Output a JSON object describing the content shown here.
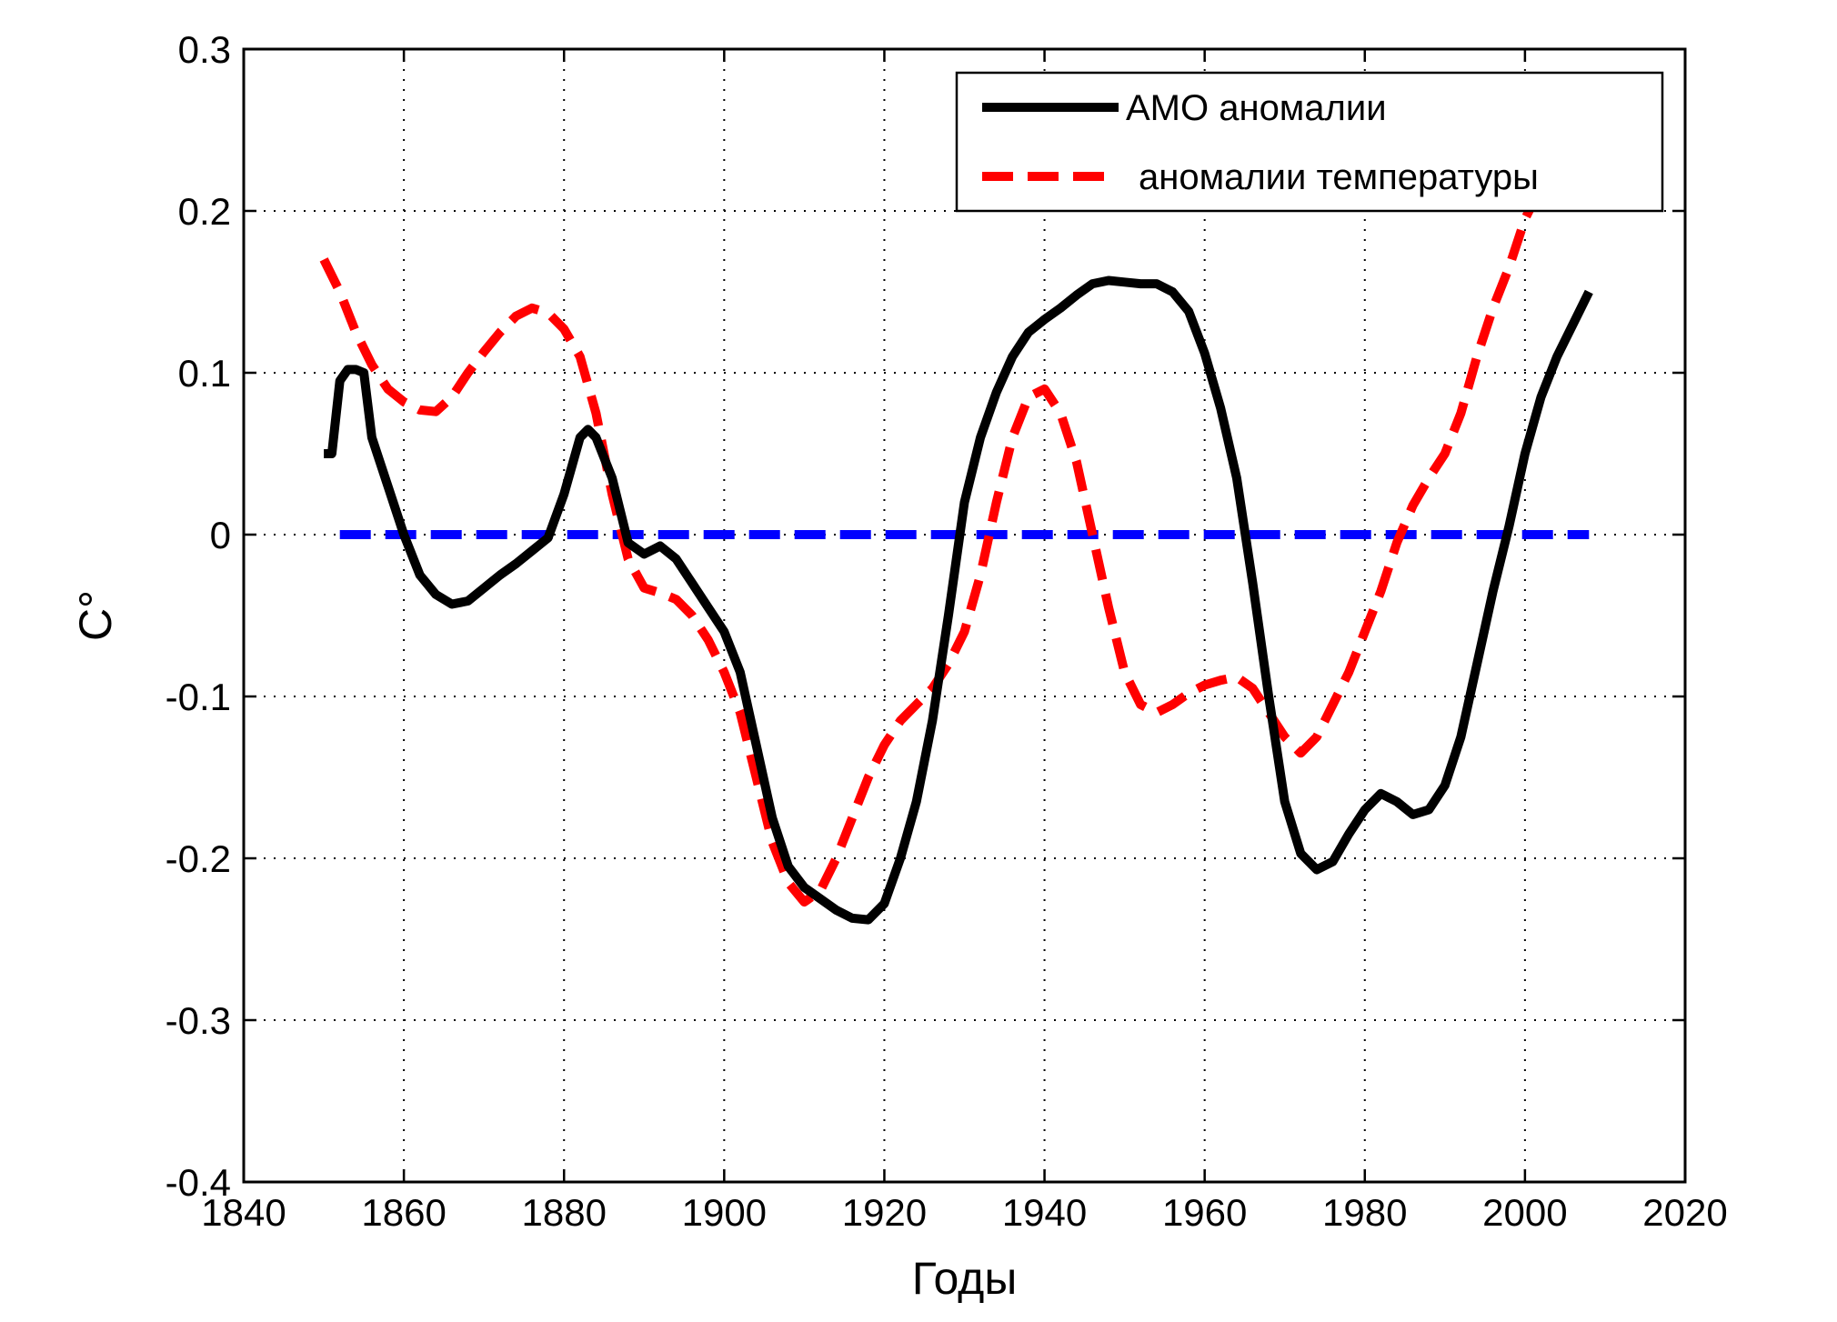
{
  "chart_data": {
    "type": "line",
    "xlabel": "Годы",
    "ylabel": "C°",
    "xlim": [
      1840,
      2020
    ],
    "ylim": [
      -0.4,
      0.3
    ],
    "xticks": [
      1840,
      1860,
      1880,
      1900,
      1920,
      1940,
      1960,
      1980,
      2000,
      2020
    ],
    "xtick_labels": [
      "1840",
      "1860",
      "1880",
      "1900",
      "1920",
      "1940",
      "1960",
      "1980",
      "2000",
      "2020"
    ],
    "yticks": [
      -0.4,
      -0.3,
      -0.2,
      -0.1,
      0,
      0.1,
      0.2,
      0.3
    ],
    "ytick_labels": [
      "-0.4",
      "-0.3",
      "-0.2",
      "-0.1",
      "0",
      "0.1",
      "0.2",
      "0.3"
    ],
    "grid": true,
    "legend_position": "top-right",
    "series": [
      {
        "name": "AMO аномалии",
        "color": "#000000",
        "style": "solid",
        "x": [
          1850,
          1851,
          1852,
          1853,
          1854,
          1855,
          1856,
          1858,
          1860,
          1862,
          1864,
          1866,
          1868,
          1870,
          1872,
          1874,
          1876,
          1878,
          1880,
          1882,
          1883,
          1884,
          1886,
          1888,
          1890,
          1892,
          1894,
          1896,
          1898,
          1900,
          1902,
          1904,
          1906,
          1908,
          1910,
          1912,
          1914,
          1916,
          1918,
          1920,
          1922,
          1924,
          1926,
          1928,
          1930,
          1932,
          1934,
          1936,
          1938,
          1940,
          1942,
          1944,
          1946,
          1948,
          1950,
          1952,
          1954,
          1956,
          1958,
          1960,
          1962,
          1964,
          1966,
          1968,
          1970,
          1972,
          1974,
          1976,
          1978,
          1980,
          1982,
          1984,
          1986,
          1988,
          1990,
          1992,
          1994,
          1996,
          1998,
          2000,
          2002,
          2004,
          2006,
          2008
        ],
        "y": [
          0.05,
          0.05,
          0.095,
          0.102,
          0.102,
          0.1,
          0.06,
          0.03,
          0.0,
          -0.025,
          -0.037,
          -0.043,
          -0.041,
          -0.033,
          -0.025,
          -0.018,
          -0.01,
          -0.002,
          0.025,
          0.06,
          0.065,
          0.06,
          0.035,
          -0.005,
          -0.012,
          -0.007,
          -0.015,
          -0.03,
          -0.045,
          -0.06,
          -0.085,
          -0.13,
          -0.175,
          -0.205,
          -0.218,
          -0.225,
          -0.232,
          -0.237,
          -0.238,
          -0.228,
          -0.2,
          -0.165,
          -0.115,
          -0.05,
          0.02,
          0.06,
          0.088,
          0.11,
          0.125,
          0.133,
          0.14,
          0.148,
          0.155,
          0.157,
          0.156,
          0.155,
          0.155,
          0.15,
          0.138,
          0.112,
          0.078,
          0.035,
          -0.03,
          -0.1,
          -0.165,
          -0.197,
          -0.207,
          -0.202,
          -0.185,
          -0.17,
          -0.16,
          -0.165,
          -0.173,
          -0.17,
          -0.155,
          -0.125,
          -0.08,
          -0.035,
          0.005,
          0.05,
          0.085,
          0.11,
          0.13,
          0.15
        ]
      },
      {
        "name": "аномалии температуры",
        "color": "#ff0000",
        "style": "dashed",
        "x": [
          1850,
          1852,
          1854,
          1856,
          1858,
          1860,
          1862,
          1864,
          1866,
          1868,
          1870,
          1872,
          1874,
          1876,
          1878,
          1880,
          1882,
          1884,
          1886,
          1888,
          1890,
          1892,
          1894,
          1896,
          1898,
          1900,
          1902,
          1904,
          1906,
          1908,
          1910,
          1912,
          1914,
          1916,
          1918,
          1920,
          1922,
          1924,
          1926,
          1928,
          1930,
          1932,
          1934,
          1936,
          1938,
          1940,
          1942,
          1944,
          1946,
          1948,
          1950,
          1952,
          1954,
          1956,
          1958,
          1960,
          1962,
          1964,
          1966,
          1968,
          1970,
          1972,
          1974,
          1976,
          1978,
          1980,
          1982,
          1984,
          1986,
          1988,
          1990,
          1992,
          1994,
          1996,
          1998,
          2000,
          2001
        ],
        "y": [
          0.17,
          0.15,
          0.125,
          0.105,
          0.09,
          0.082,
          0.077,
          0.076,
          0.085,
          0.1,
          0.113,
          0.125,
          0.135,
          0.14,
          0.137,
          0.127,
          0.11,
          0.075,
          0.025,
          -0.015,
          -0.033,
          -0.036,
          -0.04,
          -0.05,
          -0.065,
          -0.085,
          -0.11,
          -0.15,
          -0.19,
          -0.215,
          -0.227,
          -0.22,
          -0.2,
          -0.175,
          -0.15,
          -0.13,
          -0.115,
          -0.105,
          -0.095,
          -0.08,
          -0.06,
          -0.025,
          0.02,
          0.06,
          0.085,
          0.09,
          0.075,
          0.045,
          0.0,
          -0.045,
          -0.085,
          -0.105,
          -0.11,
          -0.105,
          -0.098,
          -0.093,
          -0.09,
          -0.088,
          -0.095,
          -0.11,
          -0.125,
          -0.135,
          -0.125,
          -0.105,
          -0.085,
          -0.06,
          -0.035,
          -0.005,
          0.018,
          0.035,
          0.05,
          0.075,
          0.11,
          0.14,
          0.165,
          0.195,
          0.205
        ]
      },
      {
        "name": "",
        "color": "#0000ff",
        "style": "dashed",
        "x": [
          1852,
          2008
        ],
        "y": [
          0,
          0
        ]
      }
    ]
  }
}
